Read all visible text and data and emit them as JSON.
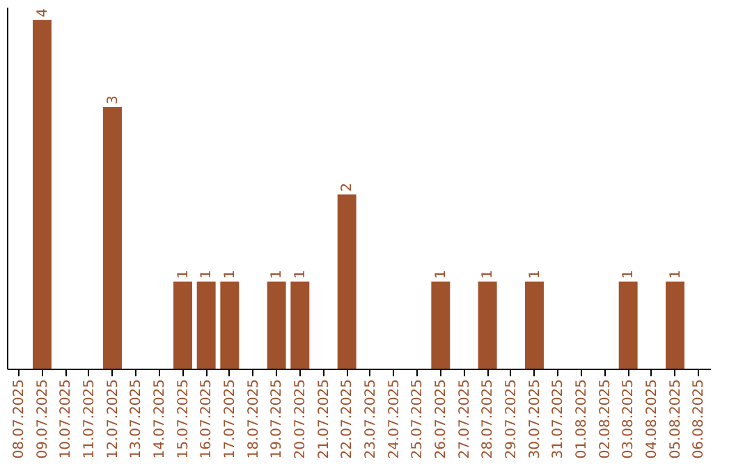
{
  "chart_data": {
    "type": "bar",
    "categories": [
      "08.07.2025",
      "09.07.2025",
      "10.07.2025",
      "11.07.2025",
      "12.07.2025",
      "13.07.2025",
      "14.07.2025",
      "15.07.2025",
      "16.07.2025",
      "17.07.2025",
      "18.07.2025",
      "19.07.2025",
      "20.07.2025",
      "21.07.2025",
      "22.07.2025",
      "23.07.2025",
      "24.07.2025",
      "25.07.2025",
      "26.07.2025",
      "27.07.2025",
      "28.07.2025",
      "29.07.2025",
      "30.07.2025",
      "31.07.2025",
      "01.08.2025",
      "02.08.2025",
      "03.08.2025",
      "04.08.2025",
      "05.08.2025",
      "06.08.2025"
    ],
    "values": [
      0,
      4,
      0,
      0,
      3,
      0,
      0,
      1,
      1,
      1,
      0,
      1,
      1,
      0,
      2,
      0,
      0,
      0,
      1,
      0,
      1,
      0,
      1,
      0,
      0,
      0,
      1,
      0,
      1,
      0
    ],
    "value_labels": [
      null,
      "4",
      null,
      null,
      "3",
      null,
      null,
      "1",
      "1",
      "1",
      null,
      "1",
      "1",
      null,
      "2",
      null,
      null,
      null,
      "1",
      null,
      "1",
      null,
      "1",
      null,
      null,
      null,
      "1",
      null,
      "1",
      null
    ],
    "color": "#a0522d",
    "ylim": [
      0,
      4.15
    ],
    "tick_labels": "x"
  }
}
